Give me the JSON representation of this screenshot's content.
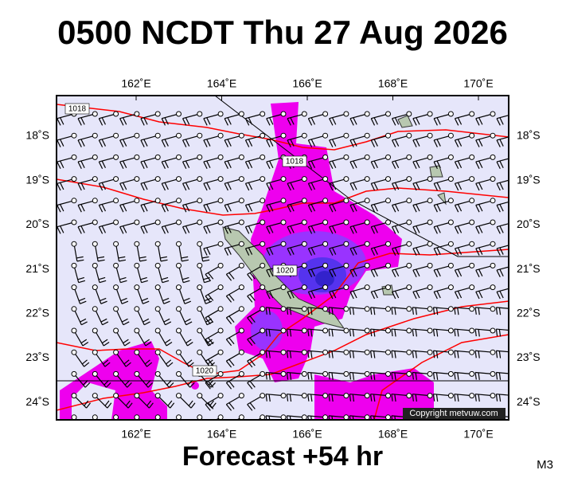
{
  "header": {
    "title": "0500 NCDT Thu 27 Aug 2026"
  },
  "map": {
    "lon_labels": [
      "162˚E",
      "164˚E",
      "166˚E",
      "168˚E",
      "170˚E"
    ],
    "lat_labels": [
      "18˚S",
      "19˚S",
      "20˚S",
      "21˚S",
      "22˚S",
      "23˚S",
      "24˚S"
    ],
    "isobar_labels": [
      "1018",
      "1018",
      "1020",
      "1020"
    ],
    "copyright": "Copyright metvuw.com"
  },
  "footer": {
    "forecast": "Forecast +54 hr",
    "code": "M3"
  }
}
